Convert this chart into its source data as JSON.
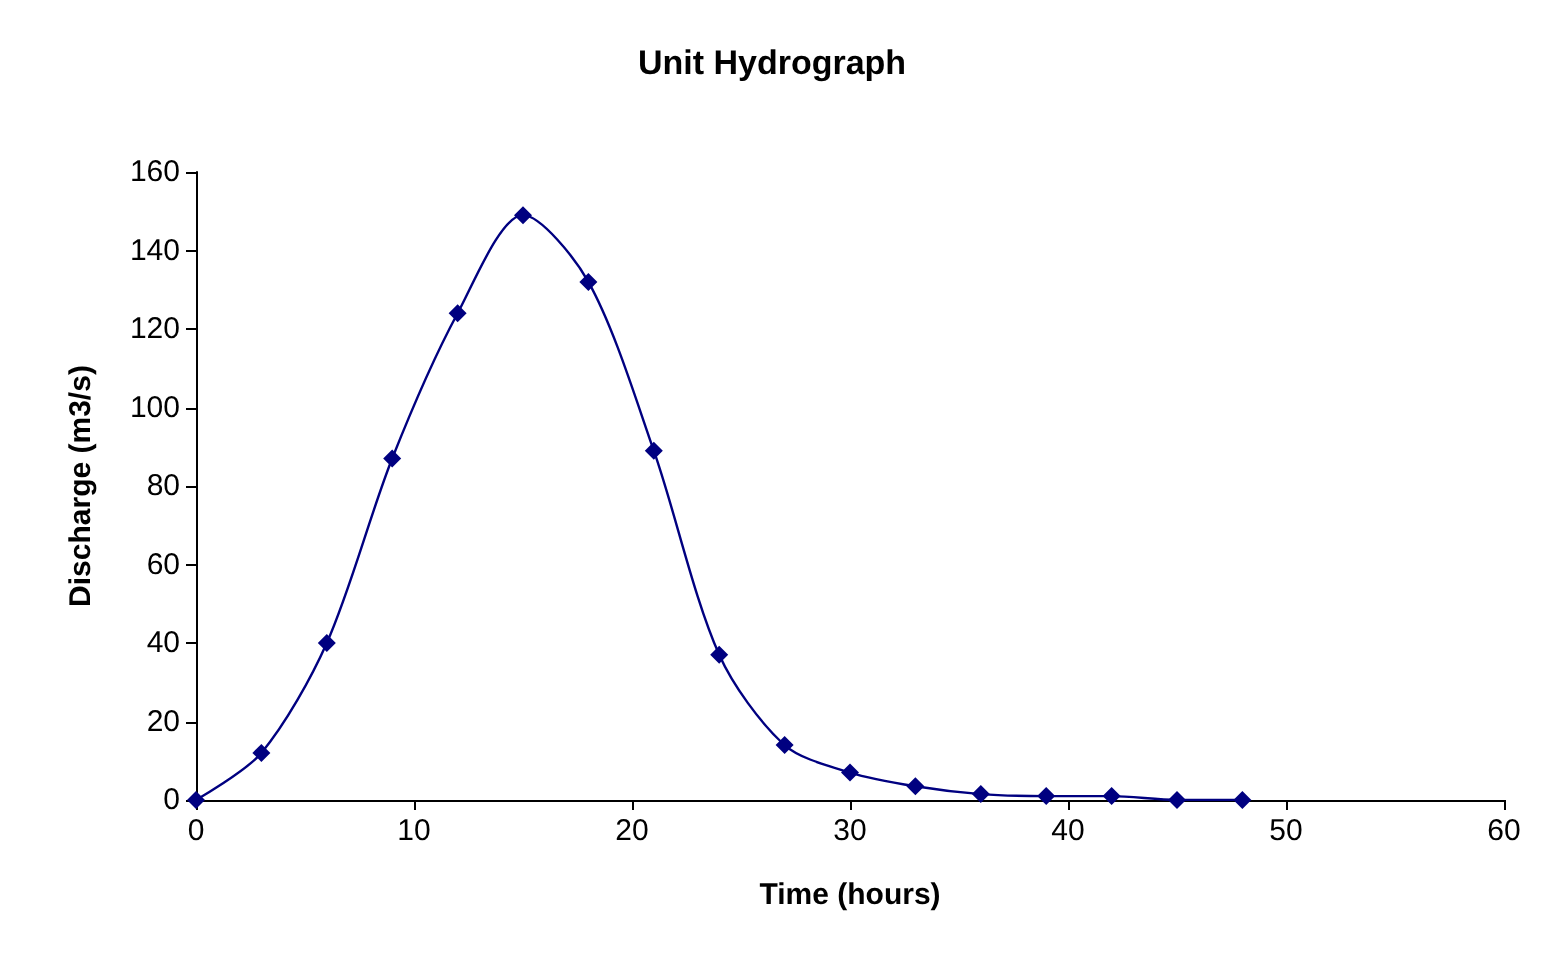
{
  "chart_data": {
    "type": "line",
    "title": "Unit Hydrograph",
    "xlabel": "Time (hours)",
    "ylabel": "Discharge (m3/s)",
    "x": [
      0,
      3,
      6,
      9,
      12,
      15,
      18,
      21,
      24,
      27,
      30,
      33,
      36,
      39,
      42,
      45,
      48
    ],
    "series": [
      {
        "color": "#000080",
        "values": [
          0,
          12,
          40,
          87,
          124,
          149,
          132,
          89,
          37,
          14,
          7,
          3.5,
          1.5,
          1,
          1,
          0,
          0
        ]
      }
    ],
    "xlim": [
      0,
      60
    ],
    "xticks": [
      0,
      10,
      20,
      30,
      40,
      50,
      60
    ],
    "ylim": [
      0,
      160
    ],
    "yticks": [
      0,
      20,
      40,
      60,
      80,
      100,
      120,
      140,
      160
    ],
    "grid": false,
    "marker": "diamond",
    "line_style": "solid"
  }
}
